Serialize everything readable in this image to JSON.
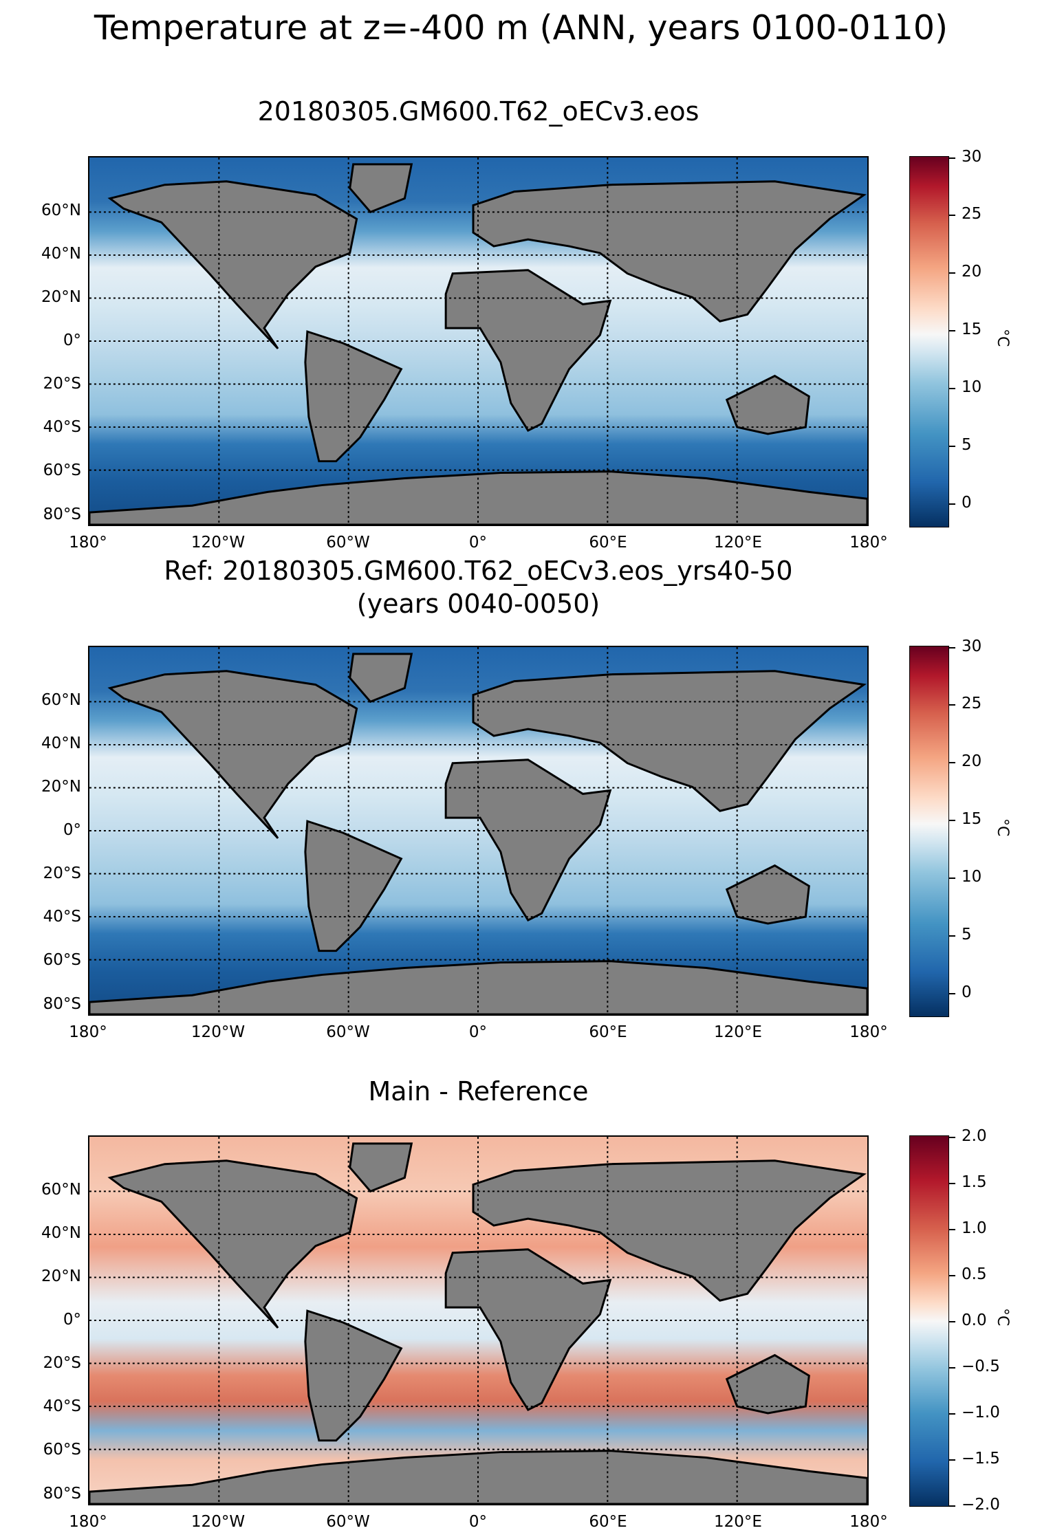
{
  "figure": {
    "suptitle": "Temperature at z=-400 m (ANN, years 0100-0110)"
  },
  "panels": [
    {
      "title": "20180305.GM600.T62_oECv3.eos",
      "colorbar": {
        "label": "°C",
        "ticks": [
          "30",
          "25",
          "20",
          "15",
          "10",
          "5",
          "0"
        ],
        "min": -2,
        "max": 30
      }
    },
    {
      "title_line1": "Ref: 20180305.GM600.T62_oECv3.eos_yrs40-50",
      "title_line2": "(years 0040-0050)",
      "colorbar": {
        "label": "°C",
        "ticks": [
          "30",
          "25",
          "20",
          "15",
          "10",
          "5",
          "0"
        ],
        "min": -2,
        "max": 30
      }
    },
    {
      "title": "Main - Reference",
      "colorbar": {
        "label": "°C",
        "ticks": [
          "2.0",
          "1.5",
          "1.0",
          "0.5",
          "0.0",
          "−0.5",
          "−1.0",
          "−1.5",
          "−2.0"
        ],
        "min": -2,
        "max": 2
      }
    }
  ],
  "axes": {
    "ylabels": [
      "60°N",
      "40°N",
      "20°N",
      "0°",
      "20°S",
      "40°S",
      "60°S",
      "80°S"
    ],
    "xlabels": [
      "180°",
      "120°W",
      "60°W",
      "0°",
      "60°E",
      "120°E",
      "180°"
    ]
  },
  "colors": {
    "land": "#808080",
    "coast": "#000000",
    "ice": "#ffffff"
  }
}
